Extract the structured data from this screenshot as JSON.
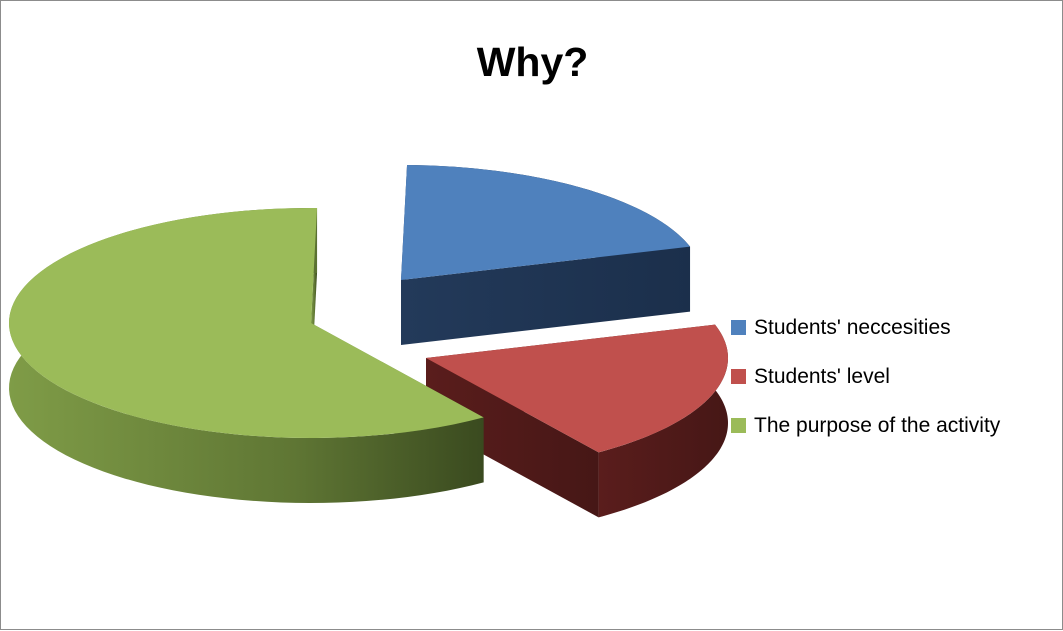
{
  "chart_data": {
    "type": "pie",
    "title": "Why?",
    "legend_position": "right",
    "categories": [
      "Students' neccesities",
      "Students' level",
      "The purpose of the activity"
    ],
    "values": [
      20,
      20,
      60
    ],
    "colors": [
      "#4f81bd",
      "#c0504d",
      "#9bbb59"
    ],
    "exploded": true,
    "three_d": true
  }
}
